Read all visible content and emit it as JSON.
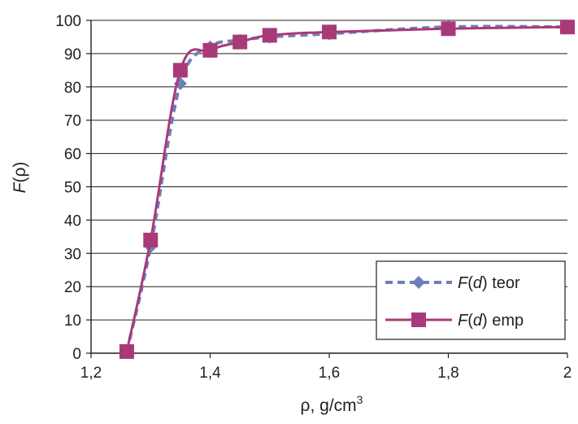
{
  "chart_data": {
    "type": "line",
    "title": "",
    "xlabel": {
      "main": "ρ, g/cm",
      "sup": "3"
    },
    "ylabel": {
      "italic": "F",
      "rest": "(ρ)"
    },
    "xlim": [
      1.2,
      2.0
    ],
    "ylim": [
      0,
      100
    ],
    "x_ticks": [
      "1,2",
      "1,4",
      "1,6",
      "1,8",
      "2"
    ],
    "y_ticks": [
      "0",
      "10",
      "20",
      "30",
      "40",
      "50",
      "60",
      "70",
      "80",
      "90",
      "100"
    ],
    "grid": "horizontal",
    "legend_position": "lower-right",
    "series": [
      {
        "name_italic": "F",
        "name_mid": "(",
        "name_italic2": "d",
        "name_rest": ") teor",
        "style": "dashed",
        "marker": "diamond",
        "color": "#6d7fb8",
        "x": [
          1.26,
          1.3,
          1.35,
          1.4,
          1.45,
          1.5,
          1.6,
          1.8,
          2.0
        ],
        "y": [
          0.5,
          32,
          81,
          92,
          94,
          95,
          96,
          98,
          98
        ]
      },
      {
        "name_italic": "F",
        "name_mid": "(",
        "name_italic2": "d",
        "name_rest": ") emp",
        "style": "solid",
        "marker": "square",
        "color": "#a93a78",
        "x": [
          1.26,
          1.3,
          1.35,
          1.4,
          1.45,
          1.5,
          1.6,
          1.8,
          2.0
        ],
        "y": [
          0.5,
          34,
          85,
          91,
          93.5,
          95.5,
          96.5,
          97.5,
          98
        ]
      }
    ]
  }
}
